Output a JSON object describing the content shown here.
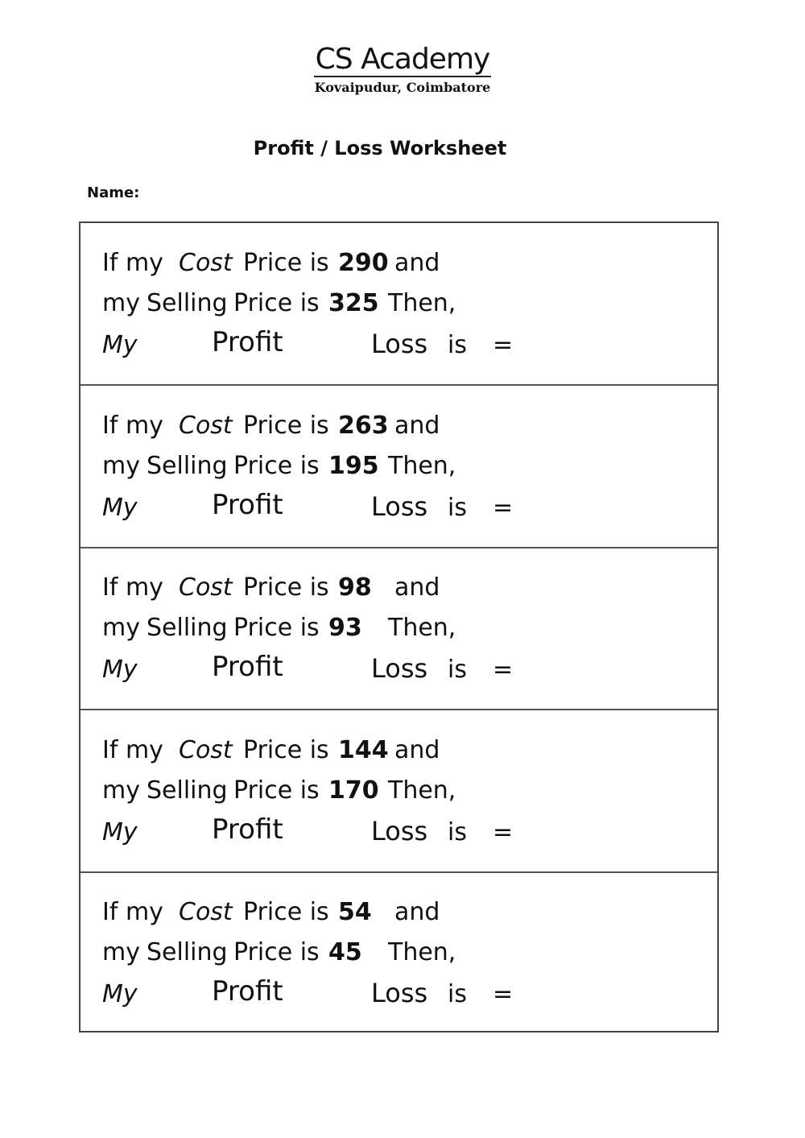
{
  "header": {
    "brand": "CS Academy",
    "location": "Kovaipudur, Coimbatore"
  },
  "title": "Profit / Loss Worksheet",
  "name_label": "Name:",
  "phrases": {
    "if_my": "If my",
    "cost": "Cost",
    "price_is": "Price is",
    "and": "and",
    "my": "my",
    "selling": "Selling",
    "then": "Then,",
    "my_cap": "My",
    "profit": "Profit",
    "loss": "Loss",
    "is": "is",
    "equals": "="
  },
  "questions": [
    {
      "cost_price": "290",
      "selling_price": "325"
    },
    {
      "cost_price": "263",
      "selling_price": "195"
    },
    {
      "cost_price": "98",
      "selling_price": "93"
    },
    {
      "cost_price": "144",
      "selling_price": "170"
    },
    {
      "cost_price": "54",
      "selling_price": "45"
    }
  ]
}
